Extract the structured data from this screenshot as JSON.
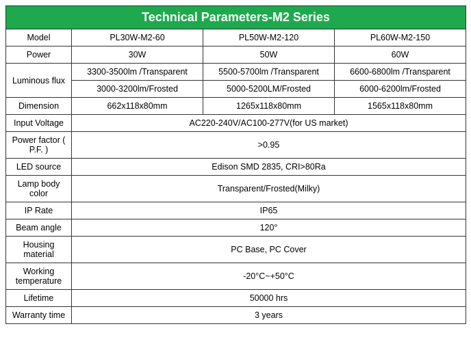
{
  "title": "Technical Parameters-M2 Series",
  "header_bg": "#1fa94e",
  "header_fg": "#ffffff",
  "border_color": "#333333",
  "labels": {
    "model": "Model",
    "power": "Power",
    "luminous_flux": "Luminous flux",
    "dimension": "Dimension",
    "input_voltage": "Input Voltage",
    "power_factor": "Power factor ( P.F. )",
    "led_source": "LED source",
    "lamp_body_color": "Lamp body color",
    "ip_rate": "IP Rate",
    "beam_angle": "Beam angle",
    "housing_material": "Housing material",
    "working_temperature": "Working temperature",
    "lifetime": "Lifetime",
    "warranty_time": "Warranty time"
  },
  "models": {
    "a": "PL30W-M2-60",
    "b": "PL50W-M2-120",
    "c": "PL60W-M2-150"
  },
  "power": {
    "a": "30W",
    "b": "50W",
    "c": "60W"
  },
  "luminous_transparent": {
    "a": "3300-3500lm /Transparent",
    "b": "5500-5700lm /Transparent",
    "c": "6600-6800lm /Transparent"
  },
  "luminous_frosted": {
    "a": "3000-3200lm/Frosted",
    "b": "5000-5200LM/Frosted",
    "c": "6000-6200lm/Frosted"
  },
  "dimension": {
    "a": "662x118x80mm",
    "b": "1265x118x80mm",
    "c": "1565x118x80mm"
  },
  "input_voltage": "AC220-240V/AC100-277V(for US market)",
  "power_factor": ">0.95",
  "led_source": "Edison SMD 2835,   CRI>80Ra",
  "lamp_body_color": "Transparent/Frosted(Milky)",
  "ip_rate": "IP65",
  "beam_angle": "120°",
  "housing_material": "PC Base, PC Cover",
  "working_temperature": "-20°C~+50°C",
  "lifetime": "50000 hrs",
  "warranty_time": "3 years"
}
